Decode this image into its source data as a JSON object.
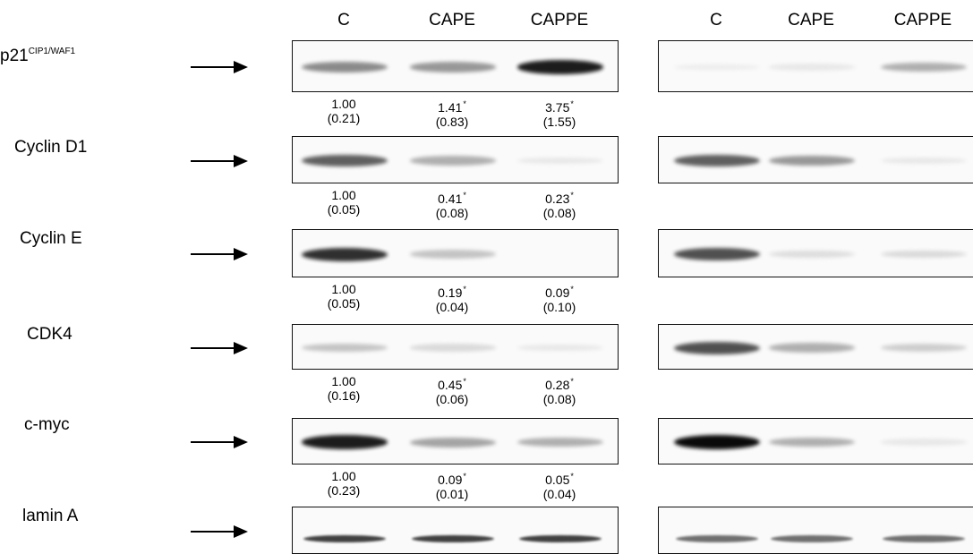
{
  "lane_headers_left": [
    "C",
    "CAPE",
    "CAPPE"
  ],
  "lane_headers_right": [
    "C",
    "CAPE",
    "CAPPE"
  ],
  "rows": [
    {
      "protein": "p21",
      "protein_sup": "CIP1/WAF1",
      "left_bands": [
        0.6,
        0.55,
        0.95
      ],
      "right_bands": [
        0.08,
        0.12,
        0.45
      ],
      "quant": [
        {
          "value": "1.00",
          "star": "",
          "sd": "(0.21)"
        },
        {
          "value": "1.41",
          "star": "*",
          "sd": "(0.83)"
        },
        {
          "value": "3.75",
          "star": "*",
          "sd": "(1.55)"
        }
      ]
    },
    {
      "protein": "Cyclin D1",
      "protein_sup": "",
      "left_bands": [
        0.75,
        0.45,
        0.12
      ],
      "right_bands": [
        0.75,
        0.55,
        0.12
      ],
      "quant": [
        {
          "value": "1.00",
          "star": "",
          "sd": "(0.05)"
        },
        {
          "value": "0.41",
          "star": "*",
          "sd": "(0.08)"
        },
        {
          "value": "0.23",
          "star": "*",
          "sd": "(0.08)"
        }
      ]
    },
    {
      "protein": "Cyclin E",
      "protein_sup": "",
      "left_bands": [
        0.9,
        0.35,
        0.0
      ],
      "right_bands": [
        0.8,
        0.2,
        0.22
      ],
      "quant": [
        {
          "value": "1.00",
          "star": "",
          "sd": "(0.05)"
        },
        {
          "value": "0.19",
          "star": "*",
          "sd": "(0.04)"
        },
        {
          "value": "0.09",
          "star": "*",
          "sd": "(0.10)"
        }
      ]
    },
    {
      "protein": "CDK4",
      "protein_sup": "",
      "left_bands": [
        0.35,
        0.22,
        0.12
      ],
      "right_bands": [
        0.8,
        0.45,
        0.3
      ],
      "quant": [
        {
          "value": "1.00",
          "star": "",
          "sd": "(0.16)"
        },
        {
          "value": "0.45",
          "star": "*",
          "sd": "(0.06)"
        },
        {
          "value": "0.28",
          "star": "*",
          "sd": "(0.08)"
        }
      ]
    },
    {
      "protein": "c-myc",
      "protein_sup": "",
      "left_bands": [
        0.95,
        0.5,
        0.45
      ],
      "right_bands": [
        1.0,
        0.45,
        0.12
      ],
      "quant": [
        {
          "value": "1.00",
          "star": "",
          "sd": "(0.23)"
        },
        {
          "value": "0.09",
          "star": "*",
          "sd": "(0.01)"
        },
        {
          "value": "0.05",
          "star": "*",
          "sd": "(0.04)"
        }
      ]
    },
    {
      "protein": "lamin A",
      "protein_sup": "",
      "left_bands": [
        0.85,
        0.85,
        0.85
      ],
      "right_bands": [
        0.7,
        0.7,
        0.7
      ],
      "quant": []
    }
  ]
}
